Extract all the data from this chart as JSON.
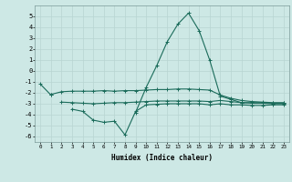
{
  "xlabel": "Humidex (Indice chaleur)",
  "x": [
    0,
    1,
    2,
    3,
    4,
    5,
    6,
    7,
    8,
    9,
    10,
    11,
    12,
    13,
    14,
    15,
    16,
    17,
    18,
    19,
    20,
    21,
    22,
    23
  ],
  "y_main": [
    -1.2,
    -2.2,
    null,
    null,
    null,
    null,
    null,
    null,
    null,
    -3.8,
    -1.5,
    0.5,
    2.7,
    4.3,
    5.3,
    3.7,
    1.0,
    -2.3,
    -2.6,
    -2.9,
    -2.9,
    -2.9,
    -2.95,
    -2.95
  ],
  "y_upper": [
    null,
    -2.15,
    -1.9,
    -1.85,
    -1.85,
    -1.85,
    -1.8,
    -1.85,
    -1.8,
    -1.8,
    -1.75,
    -1.7,
    -1.7,
    -1.65,
    -1.65,
    -1.7,
    -1.75,
    -2.2,
    -2.5,
    -2.7,
    -2.8,
    -2.85,
    -2.9,
    -2.9
  ],
  "y_mid": [
    null,
    null,
    -2.85,
    -2.9,
    -2.95,
    -3.0,
    -2.95,
    -2.9,
    -2.9,
    -2.85,
    -2.8,
    -2.75,
    -2.75,
    -2.75,
    -2.75,
    -2.75,
    -2.8,
    -2.7,
    -2.8,
    -2.9,
    -2.95,
    -2.95,
    -3.0,
    -3.0
  ],
  "y_lower": [
    null,
    null,
    null,
    -3.5,
    -3.7,
    -4.5,
    -4.7,
    -4.6,
    -5.85,
    -3.7,
    -3.1,
    -3.05,
    -3.0,
    -3.0,
    -3.0,
    -3.0,
    -3.1,
    -3.0,
    -3.1,
    -3.1,
    -3.15,
    -3.15,
    -3.1,
    -3.1
  ],
  "ylim": [
    -6.5,
    6.0
  ],
  "yticks": [
    -6,
    -5,
    -4,
    -3,
    -2,
    -1,
    0,
    1,
    2,
    3,
    4,
    5
  ],
  "bg_color": "#cde8e5",
  "grid_color": "#b8d5d2",
  "line_color": "#1a6b5a",
  "figsize": [
    3.2,
    2.0
  ],
  "dpi": 100
}
